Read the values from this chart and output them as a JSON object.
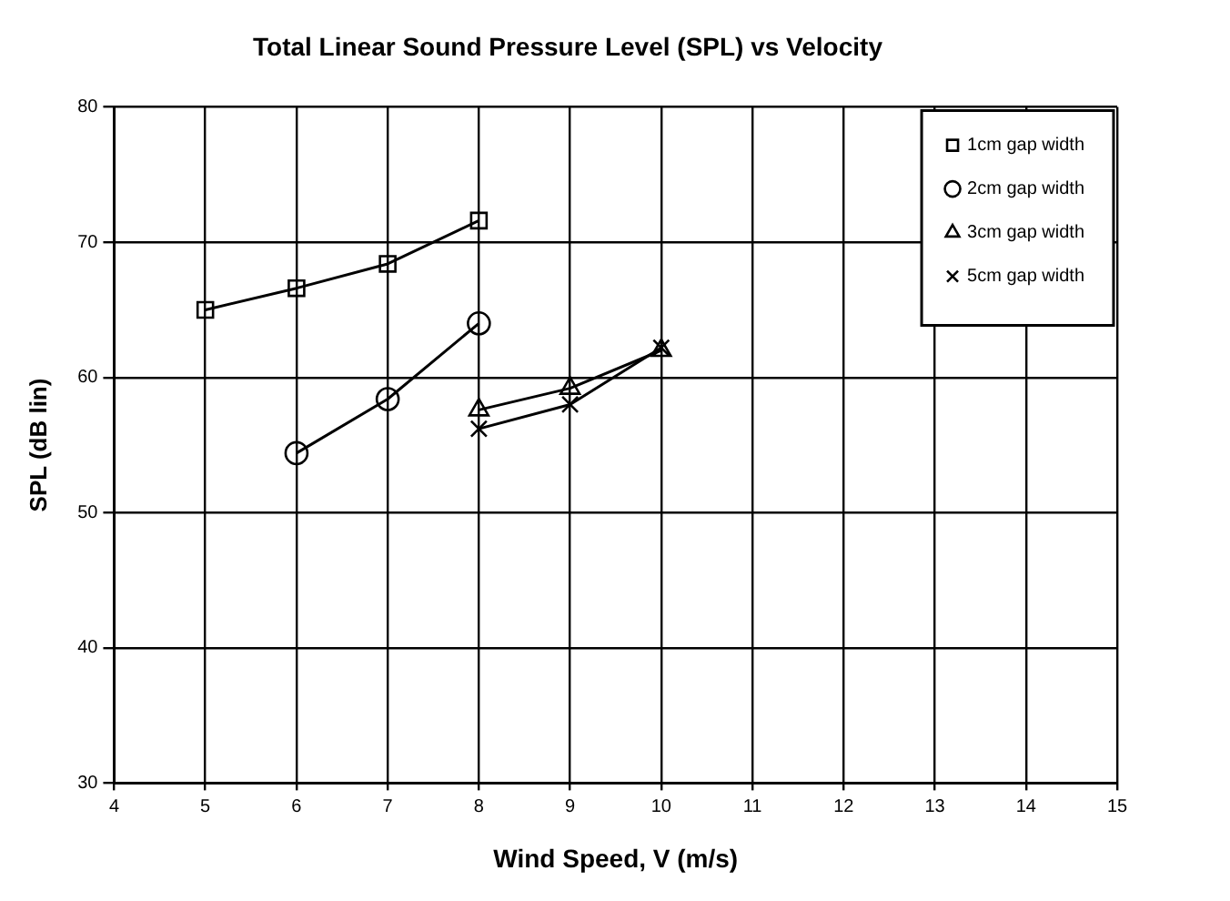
{
  "chart_data": {
    "type": "line",
    "title": "Total Linear Sound Pressure Level (SPL) vs Velocity",
    "xlabel": "Wind Speed, V (m/s)",
    "ylabel": "SPL (dB lin)",
    "xlim": [
      4,
      15
    ],
    "xticks": [
      4,
      5,
      6,
      7,
      8,
      9,
      10,
      11,
      12,
      13,
      14,
      15
    ],
    "ylim": [
      30,
      80
    ],
    "yticks": [
      30,
      40,
      50,
      60,
      70,
      80
    ],
    "grid": true,
    "legend": "top right",
    "series": [
      {
        "name": "1cm gap width",
        "color": "#000000",
        "marker": "square",
        "x": [
          5,
          6,
          7,
          8
        ],
        "values": [
          65,
          66.6,
          68.4,
          71.6
        ]
      },
      {
        "name": "2cm gap width",
        "color": "#000000",
        "marker": "circle",
        "x": [
          6,
          7,
          8
        ],
        "values": [
          54.4,
          58.4,
          64
        ]
      },
      {
        "name": "3cm gap width",
        "color": "#000000",
        "marker": "triangle",
        "x": [
          8,
          9,
          10
        ],
        "values": [
          57.6,
          59.2,
          62
        ]
      },
      {
        "name": "5cm gap width",
        "color": "#000000",
        "marker": "cross",
        "x": [
          8,
          9,
          10
        ],
        "values": [
          56.2,
          58,
          62.2
        ]
      }
    ]
  }
}
